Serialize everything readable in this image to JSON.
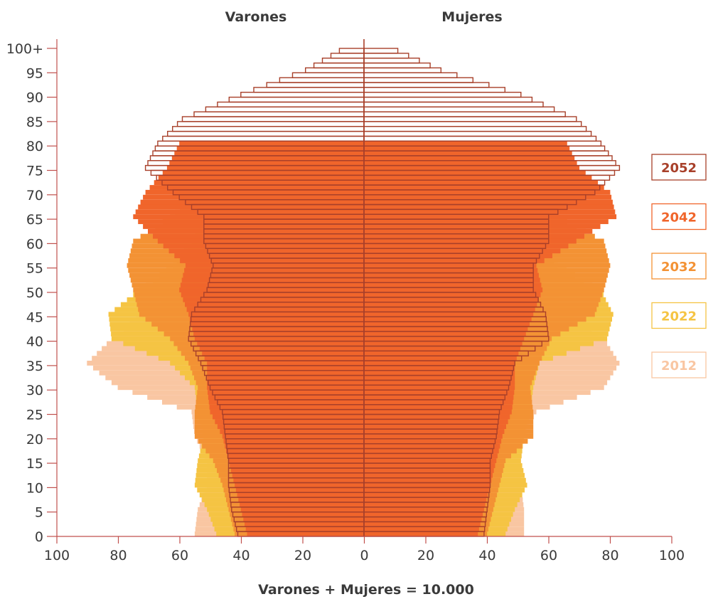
{
  "chart_data": {
    "type": "bar",
    "subtype": "population-pyramid",
    "left_label": "Varones",
    "right_label": "Mujeres",
    "xlabel": "Varones + Mujeres = 10.000",
    "x_ticks": [
      "100",
      "80",
      "60",
      "40",
      "20",
      "0",
      "20",
      "40",
      "60",
      "80",
      "100"
    ],
    "y_ticks": [
      "0",
      "5",
      "10",
      "15",
      "20",
      "25",
      "30",
      "35",
      "40",
      "45",
      "50",
      "55",
      "60",
      "65",
      "70",
      "75",
      "80",
      "85",
      "90",
      "95",
      "100+"
    ],
    "age_groups_per_tick": 5,
    "xlim": [
      -100,
      100
    ],
    "ylim": [
      0,
      100
    ],
    "series": [
      {
        "name": "2012",
        "color": "#f9c6a2",
        "style": "fill",
        "age": [
          0,
          5,
          10,
          15,
          20,
          25,
          30,
          35,
          40,
          45,
          50,
          55,
          60,
          65,
          70
        ],
        "men": [
          55,
          54,
          51,
          51,
          55,
          56,
          80,
          90,
          82,
          72,
          62,
          57,
          50,
          45,
          40
        ],
        "women": [
          52,
          52,
          51,
          51,
          52,
          56,
          78,
          83,
          78,
          68,
          60,
          56,
          50,
          45,
          40
        ]
      },
      {
        "name": "2022",
        "color": "#f5c443",
        "style": "fill",
        "age": [
          0,
          5,
          10,
          15,
          20,
          25,
          30,
          35,
          40,
          45,
          50,
          55,
          60,
          65,
          70,
          75
        ],
        "men": [
          48,
          51,
          55,
          54,
          52,
          54,
          55,
          63,
          82,
          83,
          73,
          62,
          56,
          50,
          45,
          40
        ],
        "women": [
          46,
          49,
          53,
          51,
          52,
          54,
          55,
          57,
          79,
          81,
          77,
          63,
          57,
          50,
          45,
          40
        ]
      },
      {
        "name": "2032",
        "color": "#f39234",
        "style": "fill",
        "age": [
          0,
          5,
          10,
          15,
          20,
          25,
          30,
          35,
          40,
          45,
          50,
          55,
          60,
          65,
          70,
          75
        ],
        "men": [
          42,
          44,
          46,
          49,
          55,
          55,
          54,
          57,
          63,
          73,
          75,
          77,
          75,
          63,
          55,
          50
        ],
        "women": [
          40,
          42,
          44,
          46,
          55,
          55,
          54,
          57,
          61,
          75,
          78,
          80,
          78,
          63,
          55,
          50
        ]
      },
      {
        "name": "2042",
        "color": "#f0652b",
        "style": "fill",
        "age": [
          0,
          5,
          10,
          15,
          20,
          25,
          30,
          35,
          40,
          45,
          50,
          55,
          60,
          65,
          70,
          75,
          80
        ],
        "men": [
          38,
          40,
          42,
          44,
          46,
          50,
          51,
          51,
          55,
          57,
          60,
          58,
          67,
          75,
          71,
          64,
          60
        ],
        "women": [
          37,
          39,
          41,
          43,
          45,
          48,
          49,
          49,
          52,
          55,
          58,
          56,
          69,
          82,
          80,
          70,
          66
        ]
      },
      {
        "name": "2052",
        "color": "#a8402a",
        "style": "outline",
        "age": [
          0,
          5,
          10,
          15,
          20,
          25,
          30,
          35,
          40,
          45,
          50,
          55,
          60,
          65,
          70,
          75,
          80,
          85,
          90,
          95,
          99
        ],
        "men": [
          41,
          43,
          44,
          44,
          45,
          46,
          50,
          53,
          57,
          56,
          51,
          49,
          52,
          52,
          62,
          71,
          67,
          59,
          40,
          19,
          8
        ],
        "women": [
          39,
          40,
          41,
          41,
          43,
          44,
          47,
          49,
          60,
          59,
          55,
          55,
          60,
          60,
          75,
          83,
          77,
          69,
          51,
          25,
          11
        ]
      }
    ],
    "legend_position": "right",
    "grid": false
  }
}
